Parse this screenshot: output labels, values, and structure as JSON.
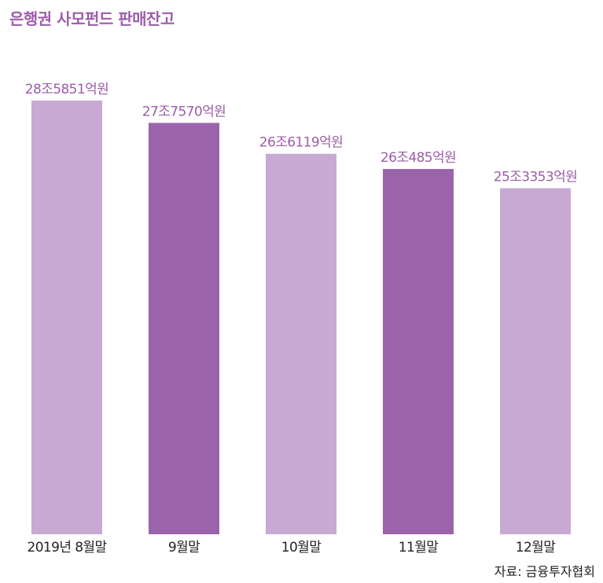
{
  "title": "은행권 사모펀드 판매잔고",
  "source": "자료: 금융투자협회",
  "colors": {
    "light": "#c8a9d3",
    "dark": "#9b64aa",
    "label": "#9b5ea8",
    "axis_text": "#222222"
  },
  "chart_data": {
    "type": "bar",
    "categories": [
      "2019년 8월말",
      "9월말",
      "10월말",
      "11월말",
      "12월말"
    ],
    "values": [
      285851,
      277570,
      266119,
      260485,
      253353
    ],
    "value_labels": [
      "28조5851억원",
      "27조7570억원",
      "26조6119억원",
      "26조485억원",
      "25조3353억원"
    ],
    "unit": "억원",
    "bar_shades": [
      "light",
      "dark",
      "light",
      "dark",
      "light"
    ]
  }
}
